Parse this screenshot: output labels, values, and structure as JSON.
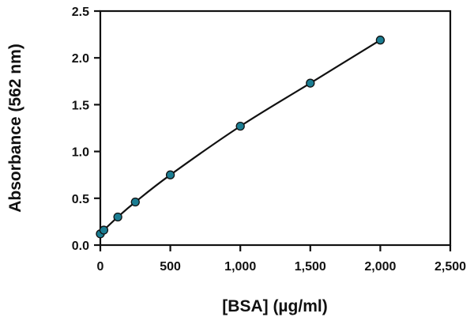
{
  "chart_data": {
    "type": "line",
    "title": "",
    "xlabel": "[BSA] (µg/ml)",
    "ylabel": "Absorbance (562 nm)",
    "xlim": [
      0,
      2500
    ],
    "ylim": [
      0,
      2.5
    ],
    "x_ticks": [
      0,
      500,
      1000,
      1500,
      2000,
      2500
    ],
    "x_tick_labels": [
      "0",
      "500",
      "1,000",
      "1,500",
      "2,000",
      "2,500"
    ],
    "y_ticks": [
      0,
      0.5,
      1.0,
      1.5,
      2.0,
      2.5
    ],
    "y_tick_labels": [
      "0.0",
      "0.5",
      "1.0",
      "1.5",
      "2.0",
      "2.5"
    ],
    "grid": false,
    "legend": "none",
    "marker_color": "#1b7d92",
    "line_color": "#111111",
    "series": [
      {
        "x": [
          0,
          25,
          125,
          250,
          500,
          1000,
          1500,
          2000
        ],
        "y": [
          0.12,
          0.16,
          0.3,
          0.46,
          0.75,
          1.27,
          1.73,
          2.19
        ]
      }
    ]
  }
}
